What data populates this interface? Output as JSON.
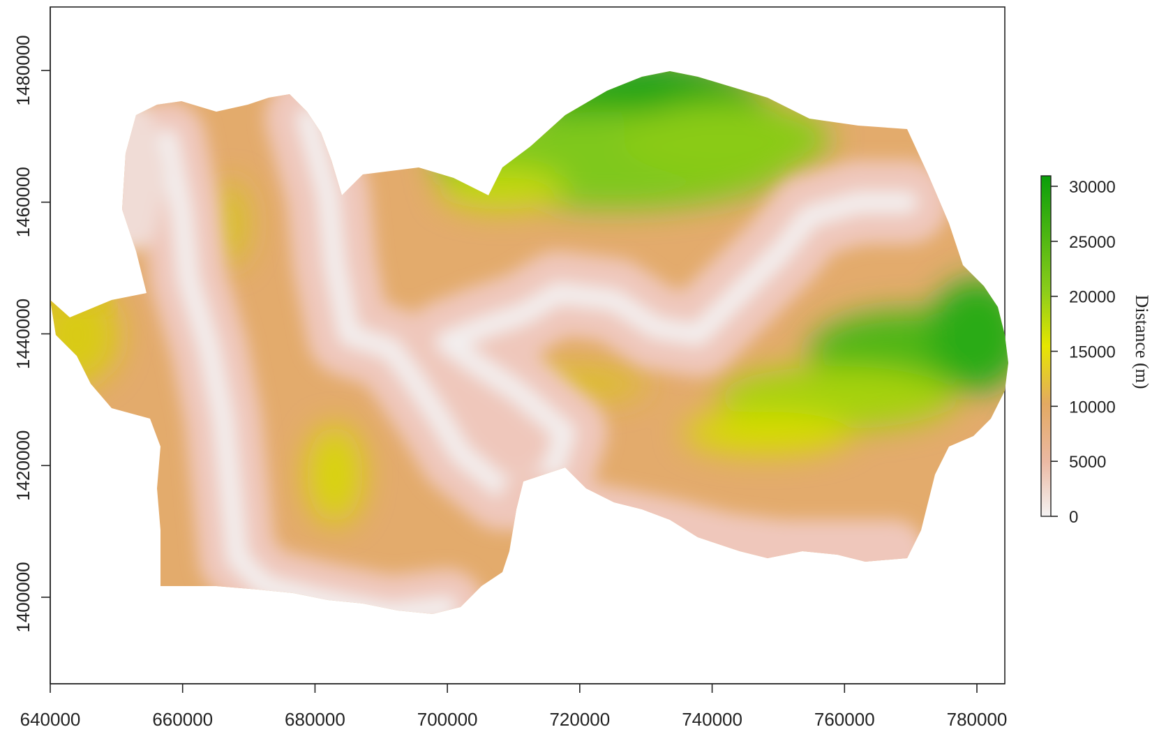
{
  "map": {
    "x_ticks": [
      "640000",
      "660000",
      "680000",
      "700000",
      "720000",
      "740000",
      "760000",
      "780000"
    ],
    "y_ticks": [
      "1400000",
      "1420000",
      "1440000",
      "1460000",
      "1480000"
    ],
    "xlim": [
      640000,
      785000
    ],
    "ylim": [
      1385000,
      1490000
    ],
    "legend": {
      "title": "Distance (m)",
      "ticks": [
        "0",
        "5000",
        "10000",
        "15000",
        "20000",
        "25000",
        "30000"
      ],
      "range": [
        0,
        31000
      ],
      "colors": [
        "#f2f2f2",
        "#ebb9a3",
        "#e3a962",
        "#e6e600",
        "#8ccd1a",
        "#0a9e0a"
      ]
    }
  }
}
